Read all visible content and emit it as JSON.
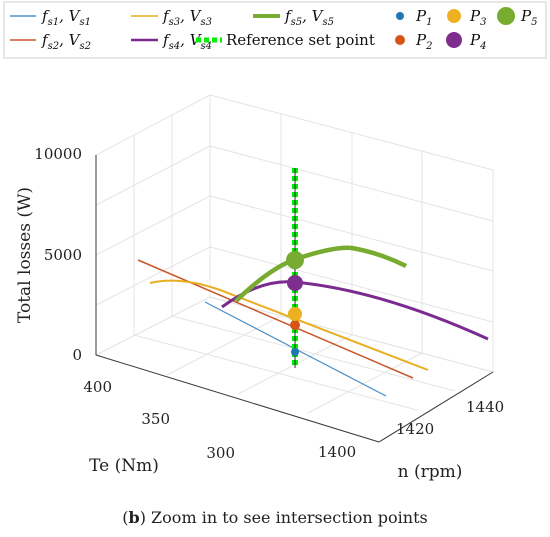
{
  "caption": {
    "tag": "b",
    "text": " Zoom in to see intersection points"
  },
  "legend": {
    "lines": [
      {
        "label": "fs1, Vs1",
        "color": "#4a90c8"
      },
      {
        "label": "fs2, Vs2",
        "color": "#c8562a"
      },
      {
        "label": "fs3, Vs3",
        "color": "#e8ae1e"
      },
      {
        "label": "fs4, Vs4",
        "color": "#7b2a90"
      },
      {
        "label": "fs5, Vs5",
        "color": "#77ac30"
      },
      {
        "label": "Reference set point",
        "color": "#00ff00"
      }
    ],
    "points": [
      {
        "label": "P1",
        "color": "#1f77b4"
      },
      {
        "label": "P2",
        "color": "#d95319"
      },
      {
        "label": "P3",
        "color": "#edb120"
      },
      {
        "label": "P4",
        "color": "#7e2f8e"
      },
      {
        "label": "P5",
        "color": "#77ac30"
      }
    ]
  },
  "chart_data": {
    "type": "line3d",
    "zlabel": "Total losses (W)",
    "ylabel": "Te (Nm)",
    "xlabel": "n (rpm)",
    "z_ticks": [
      "0",
      "5000",
      "10000"
    ],
    "y_ticks": [
      "300",
      "350",
      "400"
    ],
    "x_ticks": [
      "1400",
      "1420",
      "1440"
    ],
    "series": [
      {
        "name": "fs1, Vs1",
        "color": "#4a90c8"
      },
      {
        "name": "fs2, Vs2",
        "color": "#c8562a"
      },
      {
        "name": "fs3, Vs3",
        "color": "#e8ae1e"
      },
      {
        "name": "fs4, Vs4",
        "color": "#7b2a90"
      },
      {
        "name": "fs5, Vs5",
        "color": "#77ac30"
      },
      {
        "name": "Reference set point",
        "color": "#00ff00"
      }
    ],
    "points": [
      {
        "name": "P1",
        "z": 1000
      },
      {
        "name": "P2",
        "z": 1500
      },
      {
        "name": "P3",
        "z": 2000
      },
      {
        "name": "P4",
        "z": 3600
      },
      {
        "name": "P5",
        "z": 4700
      }
    ],
    "grid": true,
    "legend_position": "top"
  }
}
